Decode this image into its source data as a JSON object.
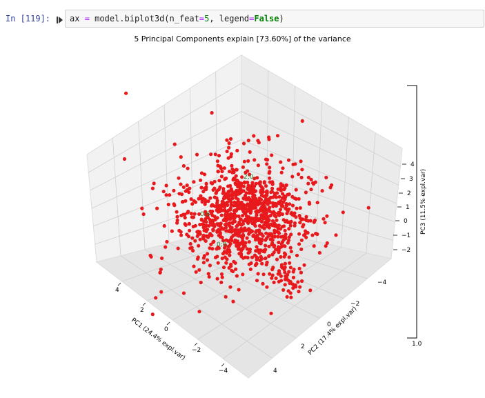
{
  "cell": {
    "prompt": "In [119]:",
    "code_var": "ax",
    "code_eq": "=",
    "code_call": "model.biplot3d(n_feat",
    "code_eq2": "=",
    "code_num": "5",
    "code_sep": ", legend",
    "code_eq3": "=",
    "code_kw": "False",
    "code_close": ")"
  },
  "chart_data": {
    "type": "scatter",
    "title": "5 Principal Components explain [73.60%] of the variance",
    "xlabel": "PC1 (24.4% expl.var)",
    "ylabel": "PC2 (17.4% expl.var)",
    "zlabel": "PC3 (11.5% expl.var)",
    "xticks": [
      "−4",
      "−2",
      "0",
      "2",
      "4"
    ],
    "yticks": [
      "−4",
      "−2",
      "0",
      "2",
      "4"
    ],
    "zticks": [
      "−2",
      "−1",
      "0",
      "1",
      "2",
      "3",
      "4"
    ],
    "colorbar_tick": "1.0",
    "feature_labels": [
      "2;0.",
      "0.6",
      "0;0."
    ],
    "point_color": "#e8191c",
    "grid": true,
    "legend": false
  }
}
